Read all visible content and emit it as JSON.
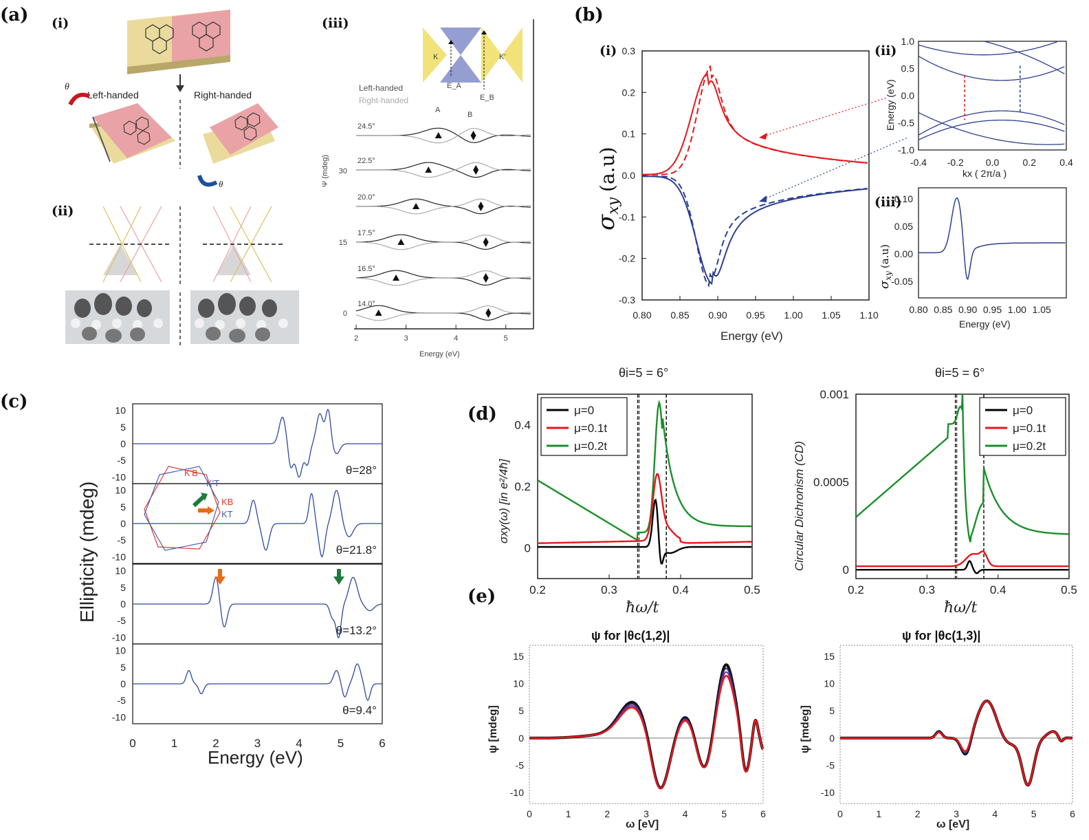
{
  "panels": {
    "a": {
      "label": "(a)",
      "i": {
        "label": "(i)",
        "left_label": "Left-handed",
        "right_label": "Right-handed",
        "theta": "θ"
      },
      "ii": {
        "label": "(ii)"
      },
      "iii": {
        "label": "(iii)",
        "legend": [
          "Left-handed",
          "Right-handed"
        ],
        "peak_labels": [
          "A",
          "B"
        ],
        "inset_labels": [
          "K",
          "K'",
          "E_A",
          "E_B"
        ],
        "ylabel": "Ψ (mdeg)",
        "xlabel": "Energy (eV)",
        "xticks": [
          "2",
          "3",
          "4",
          "5"
        ],
        "yticks": [
          "0",
          "15",
          "30"
        ],
        "angles": [
          "24.5°",
          "22.5°",
          "20.0°",
          "17.5°",
          "16.5°",
          "14.0°"
        ],
        "markers": [
          {
            "A": 3.65,
            "B": 4.35
          },
          {
            "A": 3.45,
            "B": 4.4
          },
          {
            "A": 3.2,
            "B": 4.5
          },
          {
            "A": 2.9,
            "B": 4.6
          },
          {
            "A": 2.8,
            "B": 4.6
          },
          {
            "A": 2.45,
            "B": 4.65
          }
        ]
      }
    },
    "b": {
      "label": "(b)",
      "i": {
        "label": "(i)",
        "ylabel_sym": "σ",
        "ylabel_sub": "xy",
        "ylabel_unit": "(a.u)",
        "xlabel": "Energy (eV)",
        "xlim": [
          0.8,
          1.1
        ],
        "ylim": [
          -0.3,
          0.3
        ],
        "xticks": [
          "0.80",
          "0.85",
          "0.90",
          "0.95",
          "1.00",
          "1.05",
          "1.10"
        ],
        "yticks": [
          "0.3",
          "0.2",
          "0.1",
          "0.0",
          "-0.1",
          "-0.2",
          "-0.3"
        ]
      },
      "ii": {
        "label": "(ii)",
        "ylabel": "Energy (eV)",
        "xlabel": "kx ( 2π/a )",
        "xticks": [
          "-0.4",
          "-0.2",
          "0.0",
          "0.2",
          "0.4"
        ],
        "yticks": [
          "1.0",
          "0.5",
          "0.0",
          "-0.5",
          "-1.0"
        ]
      },
      "iii": {
        "label": "(iii)",
        "ylabel_sym": "σ",
        "ylabel_sub": "xy",
        "ylabel_unit": "(a.u)",
        "xlabel": "Energy (eV)",
        "xticks": [
          "0.80",
          "0.85",
          "0.90",
          "0.95",
          "1.00",
          "1.05"
        ],
        "yticks": [
          "0.10",
          "0.05",
          "0.00",
          "-0.05"
        ]
      }
    },
    "c": {
      "label": "(c)",
      "ylabel": "Ellipticity (mdeg)",
      "xlabel": "Energy (eV)",
      "xticks": [
        "0",
        "1",
        "2",
        "3",
        "4",
        "5",
        "6"
      ],
      "yticks": [
        "10",
        "5",
        "0",
        "-5",
        "-10"
      ],
      "angles": [
        "θ=28°",
        "θ=21.8°",
        "θ=13.2°",
        "θ=9.4°"
      ],
      "bz_labels": [
        "K'B",
        "K'T",
        "KB",
        "KT"
      ]
    },
    "d": {
      "label": "(d)",
      "left": {
        "title": "θi=5 = 6°",
        "ylabel": "σxy(ω) [in e²/4ħ]",
        "xlabel": "ħω/t",
        "xticks": [
          "0.2",
          "0.3",
          "0.4",
          "0.5"
        ],
        "yticks": [
          "0.4",
          "0.2",
          "0"
        ]
      },
      "right": {
        "title": "θi=5 = 6°",
        "ylabel": "Circular Dichronism (CD)",
        "xlabel": "ħω/t",
        "xticks": [
          "0.2",
          "0.3",
          "0.4",
          "0.5"
        ],
        "yticks": [
          "0.001",
          "0.0005",
          "0"
        ]
      },
      "legend": [
        "μ=0",
        "μ=0.1t",
        "μ=0.2t"
      ],
      "colors": [
        "#000000",
        "#e8161b",
        "#1a8f2a"
      ]
    },
    "e": {
      "label": "(e)",
      "left": {
        "title": "ψ for |θc(1,2)|"
      },
      "right": {
        "title": "ψ for |θc(1,3)|"
      },
      "ylabel": "ψ [mdeg]",
      "xlabel": "ω [eV]",
      "xticks": [
        "0",
        "1",
        "2",
        "3",
        "4",
        "5",
        "6"
      ],
      "yticks": [
        "15",
        "10",
        "5",
        "0",
        "-5",
        "-10"
      ]
    }
  },
  "chart_data": [
    {
      "type": "line",
      "title": "",
      "xlabel": "Energy (eV)",
      "ylabel": "σxy (a.u)",
      "xlim": [
        0.8,
        1.1
      ],
      "ylim": [
        -0.3,
        0.3
      ],
      "series_colors": [
        "#e8161b",
        "#2b3f8f"
      ],
      "resonance": {
        "center": 0.89,
        "red_peak": 0.245,
        "blue_peak": -0.26
      }
    },
    {
      "type": "line",
      "xlabel": "Energy (eV)",
      "xlim": [
        0.8,
        1.1
      ],
      "ylim": [
        -0.08,
        0.12
      ],
      "resonance": {
        "center": 0.885,
        "peak": 0.1,
        "trough": -0.06
      }
    },
    {
      "type": "line",
      "xlabel": "ħω/t",
      "ylabel": "σxy(ω) [in e²/4ħ]",
      "xlim": [
        0.2,
        0.5
      ],
      "ylim": [
        -0.1,
        0.5
      ],
      "vlines": [
        0.34,
        0.38
      ],
      "series": [
        {
          "name": "μ=0",
          "peak": 0.16,
          "trough": -0.07
        },
        {
          "name": "μ=0.1t",
          "peak": 0.23,
          "base": 0.01
        },
        {
          "name": "μ=0.2t",
          "peak": 0.47,
          "start": 0.23
        }
      ]
    },
    {
      "type": "line",
      "xlabel": "ħω/t",
      "ylabel": "Circular Dichronism (CD)",
      "xlim": [
        0.2,
        0.5
      ],
      "ylim": [
        -5e-05,
        0.001
      ],
      "vlines": [
        0.34,
        0.38
      ],
      "series": [
        {
          "name": "μ=0",
          "peak": 5e-05
        },
        {
          "name": "μ=0.1t",
          "peak": 0.0001
        },
        {
          "name": "μ=0.2t",
          "peak": 0.0009,
          "start": 0.0003
        }
      ]
    },
    {
      "type": "line",
      "xlabel": "Energy (eV)",
      "ylabel": "Ellipticity (mdeg)",
      "xlim": [
        0,
        6
      ],
      "ylim": [
        -12,
        12
      ],
      "series": [
        {
          "name": "θ=28°"
        },
        {
          "name": "θ=21.8°"
        },
        {
          "name": "θ=13.2°"
        },
        {
          "name": "θ=9.4°"
        }
      ]
    },
    {
      "type": "line",
      "title": "ψ for |θc(1,2)|",
      "xlabel": "ω [eV]",
      "ylabel": "ψ [mdeg]",
      "xlim": [
        0,
        6
      ],
      "ylim": [
        -12,
        17
      ]
    },
    {
      "type": "line",
      "title": "ψ for |θc(1,3)|",
      "xlabel": "ω [eV]",
      "ylabel": "ψ [mdeg]",
      "xlim": [
        0,
        6
      ],
      "ylim": [
        -12,
        17
      ]
    }
  ]
}
